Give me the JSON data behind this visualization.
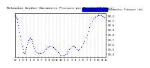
{
  "title": "Milwaukee Weather Barometric Pressure per Minute (24 Hours)",
  "background_color": "#ffffff",
  "plot_bg_color": "#ffffff",
  "grid_color": "#aaaaaa",
  "dot_color": "#0000cc",
  "legend_color": "#0000cc",
  "legend_label": "Barometric Pressure (in)",
  "x_min": 0,
  "x_max": 1440,
  "y_min": 29.35,
  "y_max": 30.25,
  "y_ticks": [
    29.4,
    29.5,
    29.6,
    29.7,
    29.8,
    29.9,
    30.0,
    30.1,
    30.2
  ],
  "x_ticks": [
    0,
    60,
    120,
    180,
    240,
    300,
    360,
    420,
    480,
    540,
    600,
    660,
    720,
    780,
    840,
    900,
    960,
    1020,
    1080,
    1140,
    1200,
    1260,
    1320,
    1380,
    1440
  ],
  "x_tick_labels": [
    "12",
    "1",
    "2",
    "3",
    "4",
    "5",
    "6",
    "7",
    "8",
    "9",
    "10",
    "11",
    "12",
    "1",
    "2",
    "3",
    "4",
    "5",
    "6",
    "7",
    "8",
    "9",
    "10",
    "11",
    "12"
  ],
  "data_x": [
    0,
    10,
    20,
    30,
    40,
    50,
    60,
    70,
    80,
    90,
    100,
    110,
    120,
    130,
    140,
    150,
    160,
    170,
    180,
    190,
    200,
    210,
    220,
    230,
    240,
    250,
    260,
    270,
    280,
    290,
    300,
    320,
    340,
    360,
    380,
    400,
    420,
    440,
    460,
    480,
    500,
    520,
    540,
    560,
    580,
    600,
    620,
    640,
    660,
    680,
    700,
    720,
    740,
    760,
    780,
    800,
    820,
    840,
    860,
    880,
    900,
    920,
    940,
    960,
    980,
    1000,
    1020,
    1040,
    1060,
    1080,
    1100,
    1120,
    1140,
    1160,
    1180,
    1200,
    1220,
    1240,
    1260,
    1280,
    1300,
    1320,
    1340,
    1360,
    1380,
    1400,
    1420,
    1440
  ],
  "data_y": [
    30.2,
    30.18,
    30.15,
    30.12,
    30.07,
    30.01,
    29.94,
    29.86,
    29.78,
    29.7,
    29.62,
    29.56,
    29.5,
    29.45,
    29.42,
    29.43,
    29.46,
    29.5,
    29.55,
    29.6,
    29.65,
    29.69,
    29.71,
    29.73,
    29.74,
    29.72,
    29.7,
    29.67,
    29.63,
    29.58,
    29.53,
    29.48,
    29.44,
    29.42,
    29.41,
    29.41,
    29.42,
    29.44,
    29.47,
    29.5,
    29.52,
    29.54,
    29.56,
    29.57,
    29.56,
    29.55,
    29.53,
    29.5,
    29.47,
    29.44,
    29.41,
    29.38,
    29.37,
    29.37,
    29.38,
    29.4,
    29.43,
    29.46,
    29.5,
    29.53,
    29.56,
    29.57,
    29.56,
    29.54,
    29.51,
    29.49,
    29.51,
    29.54,
    29.58,
    29.63,
    29.68,
    29.74,
    29.81,
    29.88,
    29.96,
    30.03,
    30.09,
    30.13,
    30.16,
    30.18,
    30.19,
    30.2,
    30.2,
    30.2,
    30.19,
    30.18,
    30.17,
    30.16
  ]
}
